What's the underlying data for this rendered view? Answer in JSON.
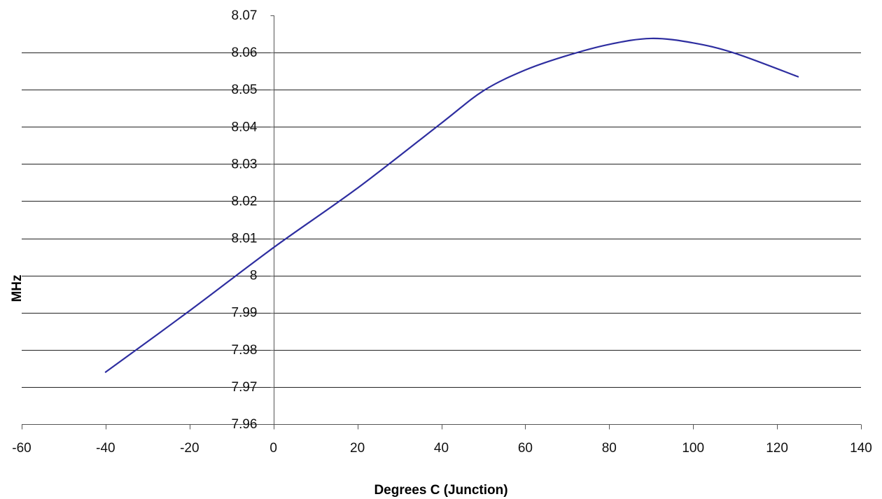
{
  "chart_data": {
    "type": "line",
    "title": "",
    "xlabel": "Degrees C (Junction)",
    "ylabel": "MHz",
    "xlim": [
      -60,
      140
    ],
    "ylim": [
      7.96,
      8.07
    ],
    "x_ticks": [
      -60,
      -40,
      -20,
      0,
      20,
      40,
      60,
      80,
      100,
      120,
      140
    ],
    "y_ticks": [
      7.96,
      7.97,
      7.98,
      7.99,
      8,
      8.01,
      8.02,
      8.03,
      8.04,
      8.05,
      8.06,
      8.07
    ],
    "x_tick_labels": [
      "-60",
      "-40",
      "-20",
      "0",
      "20",
      "40",
      "60",
      "80",
      "100",
      "120",
      "140"
    ],
    "y_tick_labels": [
      "7.96",
      "7.97",
      "7.98",
      "7.99",
      "8",
      "8.01",
      "8.02",
      "8.03",
      "8.04",
      "8.05",
      "8.06",
      "8.07"
    ],
    "grid": "horizontal",
    "legend": "none",
    "series": [
      {
        "color": "#2e2ea0",
        "x": [
          -40,
          -20,
          0,
          20,
          40,
          50,
          60,
          70,
          80,
          90,
          100,
          110,
          125
        ],
        "y": [
          7.974,
          7.9905,
          8.0075,
          8.0235,
          8.041,
          8.0497,
          8.0553,
          8.0592,
          8.0622,
          8.0638,
          8.0626,
          8.0598,
          8.0535
        ]
      }
    ]
  }
}
